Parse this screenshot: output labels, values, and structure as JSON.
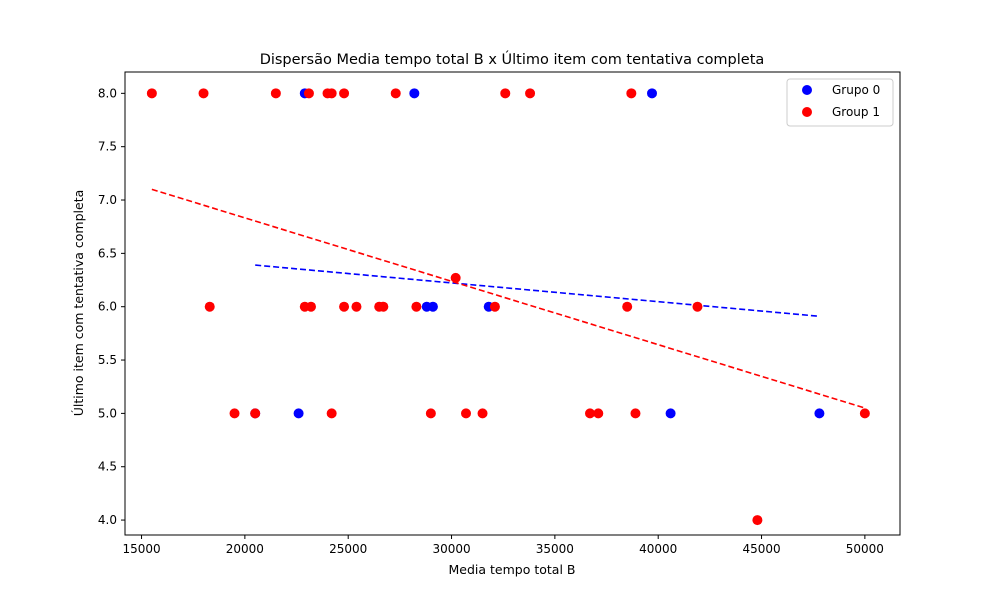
{
  "chart_data": {
    "type": "scatter",
    "title": "Dispersão Media tempo total B x Último item com tentativa completa",
    "xlabel": "Media tempo total B",
    "ylabel": "Último item com tentativa completa",
    "xlim": [
      14200,
      51700
    ],
    "ylim": [
      3.86,
      8.2
    ],
    "xticks": [
      15000,
      20000,
      25000,
      30000,
      35000,
      40000,
      45000,
      50000
    ],
    "yticks": [
      4.0,
      4.5,
      5.0,
      5.5,
      6.0,
      6.5,
      7.0,
      7.5,
      8.0
    ],
    "legend_position": "top-right",
    "series": [
      {
        "name": "Grupo 0",
        "color": "#0000ff",
        "points": [
          {
            "x": 22900,
            "y": 8.0
          },
          {
            "x": 28200,
            "y": 8.0
          },
          {
            "x": 39700,
            "y": 8.0
          },
          {
            "x": 28800,
            "y": 6.0
          },
          {
            "x": 29100,
            "y": 6.0
          },
          {
            "x": 31800,
            "y": 6.0
          },
          {
            "x": 20500,
            "y": 5.0
          },
          {
            "x": 22600,
            "y": 5.0
          },
          {
            "x": 40600,
            "y": 5.0
          },
          {
            "x": 47800,
            "y": 5.0
          }
        ],
        "trend": {
          "x0": 20500,
          "y0": 6.39,
          "x1": 47800,
          "y1": 5.91
        }
      },
      {
        "name": "Group 1",
        "color": "#ff0000",
        "points": [
          {
            "x": 15500,
            "y": 8.0
          },
          {
            "x": 18000,
            "y": 8.0
          },
          {
            "x": 21500,
            "y": 8.0
          },
          {
            "x": 23100,
            "y": 8.0
          },
          {
            "x": 24000,
            "y": 8.0
          },
          {
            "x": 24200,
            "y": 8.0
          },
          {
            "x": 24800,
            "y": 8.0
          },
          {
            "x": 27300,
            "y": 8.0
          },
          {
            "x": 32600,
            "y": 8.0
          },
          {
            "x": 33800,
            "y": 8.0
          },
          {
            "x": 38700,
            "y": 8.0
          },
          {
            "x": 30200,
            "y": 6.27
          },
          {
            "x": 18300,
            "y": 6.0
          },
          {
            "x": 22900,
            "y": 6.0
          },
          {
            "x": 23200,
            "y": 6.0
          },
          {
            "x": 24800,
            "y": 6.0
          },
          {
            "x": 25400,
            "y": 6.0
          },
          {
            "x": 26500,
            "y": 6.0
          },
          {
            "x": 26700,
            "y": 6.0
          },
          {
            "x": 28300,
            "y": 6.0
          },
          {
            "x": 32100,
            "y": 6.0
          },
          {
            "x": 38500,
            "y": 6.0
          },
          {
            "x": 41900,
            "y": 6.0
          },
          {
            "x": 19500,
            "y": 5.0
          },
          {
            "x": 20500,
            "y": 5.0
          },
          {
            "x": 24200,
            "y": 5.0
          },
          {
            "x": 29000,
            "y": 5.0
          },
          {
            "x": 30700,
            "y": 5.0
          },
          {
            "x": 31500,
            "y": 5.0
          },
          {
            "x": 36700,
            "y": 5.0
          },
          {
            "x": 37100,
            "y": 5.0
          },
          {
            "x": 38900,
            "y": 5.0
          },
          {
            "x": 50000,
            "y": 5.0
          },
          {
            "x": 44800,
            "y": 4.0
          }
        ],
        "trend": {
          "x0": 15500,
          "y0": 7.1,
          "x1": 50000,
          "y1": 5.05
        }
      }
    ]
  }
}
